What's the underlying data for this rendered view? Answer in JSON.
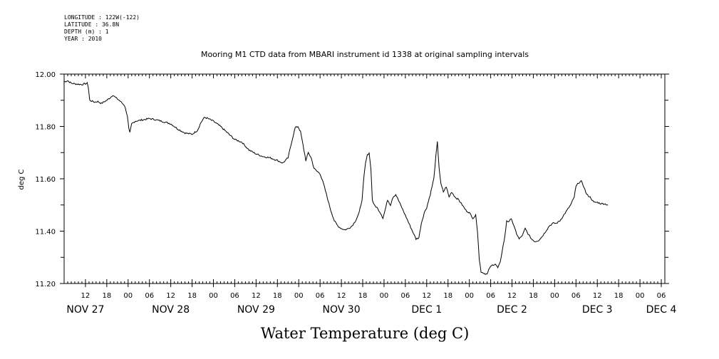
{
  "header": {
    "longitude": "LONGITUDE : 122W(-122)",
    "latitude": "LATITUDE : 36.8N",
    "depth": "DEPTH (m) : 1",
    "year": "YEAR : 2010"
  },
  "chart_data": {
    "type": "line",
    "title": "Mooring M1 CTD data from MBARI instrument id 1338 at original sampling intervals",
    "xlabel": "Water Temperature (deg C)",
    "ylabel": "deg C",
    "x_unit": "hour",
    "xlim": [
      6,
      175
    ],
    "ylim": [
      11.2,
      12.0
    ],
    "yticks": [
      11.2,
      11.4,
      11.6,
      11.8,
      12.0
    ],
    "ytick_labels": [
      "11.20",
      "11.40",
      "11.60",
      "11.80",
      "12.00"
    ],
    "hour_ticks": [
      {
        "x": 12,
        "label": "12"
      },
      {
        "x": 18,
        "label": "18"
      },
      {
        "x": 24,
        "label": "00"
      },
      {
        "x": 30,
        "label": "06"
      },
      {
        "x": 36,
        "label": "12"
      },
      {
        "x": 42,
        "label": "18"
      },
      {
        "x": 48,
        "label": "00"
      },
      {
        "x": 54,
        "label": "06"
      },
      {
        "x": 60,
        "label": "12"
      },
      {
        "x": 66,
        "label": "18"
      },
      {
        "x": 72,
        "label": "00"
      },
      {
        "x": 78,
        "label": "06"
      },
      {
        "x": 84,
        "label": "12"
      },
      {
        "x": 90,
        "label": "18"
      },
      {
        "x": 96,
        "label": "00"
      },
      {
        "x": 102,
        "label": "06"
      },
      {
        "x": 108,
        "label": "12"
      },
      {
        "x": 114,
        "label": "18"
      },
      {
        "x": 120,
        "label": "00"
      },
      {
        "x": 126,
        "label": "06"
      },
      {
        "x": 132,
        "label": "12"
      },
      {
        "x": 138,
        "label": "18"
      },
      {
        "x": 144,
        "label": "00"
      },
      {
        "x": 150,
        "label": "06"
      },
      {
        "x": 156,
        "label": "12"
      },
      {
        "x": 162,
        "label": "18"
      },
      {
        "x": 168,
        "label": "00"
      },
      {
        "x": 174,
        "label": "06"
      }
    ],
    "day_labels": [
      {
        "x": 12,
        "label": "NOV 27"
      },
      {
        "x": 36,
        "label": "NOV 28"
      },
      {
        "x": 60,
        "label": "NOV 29"
      },
      {
        "x": 84,
        "label": "NOV 30"
      },
      {
        "x": 108,
        "label": "DEC  1"
      },
      {
        "x": 132,
        "label": "DEC  2"
      },
      {
        "x": 156,
        "label": "DEC  3"
      },
      {
        "x": 174,
        "label": "DEC  4"
      }
    ],
    "series": [
      {
        "values": [
          [
            6.0,
            11.97
          ],
          [
            7.0,
            11.975
          ],
          [
            8.0,
            11.965
          ],
          [
            9.5,
            11.962
          ],
          [
            11.0,
            11.96
          ],
          [
            12.5,
            11.965
          ],
          [
            12.8,
            11.95
          ],
          [
            13.2,
            11.9
          ],
          [
            14.5,
            11.893
          ],
          [
            15.5,
            11.895
          ],
          [
            16.5,
            11.888
          ],
          [
            18.0,
            11.9
          ],
          [
            19.0,
            11.91
          ],
          [
            19.7,
            11.92
          ],
          [
            20.5,
            11.91
          ],
          [
            21.5,
            11.9
          ],
          [
            23.0,
            11.88
          ],
          [
            23.8,
            11.84
          ],
          [
            24.2,
            11.79
          ],
          [
            24.5,
            11.775
          ],
          [
            25.0,
            11.81
          ],
          [
            26.0,
            11.82
          ],
          [
            28.0,
            11.825
          ],
          [
            30.0,
            11.83
          ],
          [
            32.0,
            11.825
          ],
          [
            34.0,
            11.818
          ],
          [
            36.0,
            11.81
          ],
          [
            38.0,
            11.79
          ],
          [
            40.0,
            11.775
          ],
          [
            42.0,
            11.77
          ],
          [
            43.5,
            11.785
          ],
          [
            44.5,
            11.815
          ],
          [
            45.5,
            11.835
          ],
          [
            46.5,
            11.83
          ],
          [
            48.0,
            11.82
          ],
          [
            50.0,
            11.8
          ],
          [
            52.0,
            11.775
          ],
          [
            54.0,
            11.75
          ],
          [
            56.0,
            11.74
          ],
          [
            58.0,
            11.71
          ],
          [
            60.0,
            11.695
          ],
          [
            62.0,
            11.685
          ],
          [
            64.0,
            11.68
          ],
          [
            66.0,
            11.67
          ],
          [
            67.5,
            11.66
          ],
          [
            69.0,
            11.68
          ],
          [
            70.0,
            11.74
          ],
          [
            71.0,
            11.795
          ],
          [
            71.8,
            11.8
          ],
          [
            72.5,
            11.78
          ],
          [
            73.2,
            11.73
          ],
          [
            74.0,
            11.67
          ],
          [
            74.7,
            11.7
          ],
          [
            75.5,
            11.68
          ],
          [
            76.3,
            11.64
          ],
          [
            77.0,
            11.63
          ],
          [
            78.0,
            11.62
          ],
          [
            79.0,
            11.58
          ],
          [
            80.0,
            11.53
          ],
          [
            81.0,
            11.48
          ],
          [
            82.0,
            11.44
          ],
          [
            83.0,
            11.42
          ],
          [
            84.0,
            11.41
          ],
          [
            85.0,
            11.405
          ],
          [
            86.0,
            11.41
          ],
          [
            87.0,
            11.42
          ],
          [
            88.0,
            11.44
          ],
          [
            89.0,
            11.47
          ],
          [
            89.8,
            11.52
          ],
          [
            90.3,
            11.6
          ],
          [
            90.8,
            11.66
          ],
          [
            91.3,
            11.69
          ],
          [
            91.8,
            11.7
          ],
          [
            92.3,
            11.64
          ],
          [
            92.7,
            11.52
          ],
          [
            93.2,
            11.5
          ],
          [
            94.0,
            11.49
          ],
          [
            95.0,
            11.47
          ],
          [
            95.7,
            11.45
          ],
          [
            96.3,
            11.48
          ],
          [
            97.0,
            11.52
          ],
          [
            97.8,
            11.5
          ],
          [
            98.5,
            11.53
          ],
          [
            99.3,
            11.54
          ],
          [
            100.0,
            11.52
          ],
          [
            101.0,
            11.49
          ],
          [
            102.0,
            11.46
          ],
          [
            103.0,
            11.43
          ],
          [
            104.0,
            11.4
          ],
          [
            105.0,
            11.37
          ],
          [
            105.8,
            11.375
          ],
          [
            106.5,
            11.43
          ],
          [
            107.3,
            11.47
          ],
          [
            108.0,
            11.49
          ],
          [
            109.0,
            11.54
          ],
          [
            110.0,
            11.6
          ],
          [
            110.6,
            11.69
          ],
          [
            111.0,
            11.74
          ],
          [
            111.5,
            11.64
          ],
          [
            112.0,
            11.58
          ],
          [
            112.7,
            11.55
          ],
          [
            113.5,
            11.57
          ],
          [
            114.3,
            11.53
          ],
          [
            115.0,
            11.55
          ],
          [
            116.0,
            11.53
          ],
          [
            117.0,
            11.52
          ],
          [
            118.0,
            11.5
          ],
          [
            119.0,
            11.48
          ],
          [
            120.0,
            11.47
          ],
          [
            121.0,
            11.45
          ],
          [
            121.8,
            11.46
          ],
          [
            122.3,
            11.4
          ],
          [
            122.8,
            11.29
          ],
          [
            123.3,
            11.245
          ],
          [
            124.0,
            11.24
          ],
          [
            125.0,
            11.235
          ],
          [
            125.7,
            11.26
          ],
          [
            126.5,
            11.27
          ],
          [
            127.3,
            11.275
          ],
          [
            128.0,
            11.26
          ],
          [
            128.7,
            11.28
          ],
          [
            129.3,
            11.33
          ],
          [
            130.0,
            11.38
          ],
          [
            130.5,
            11.44
          ],
          [
            131.2,
            11.435
          ],
          [
            131.8,
            11.45
          ],
          [
            132.5,
            11.42
          ],
          [
            133.3,
            11.39
          ],
          [
            134.0,
            11.37
          ],
          [
            135.0,
            11.385
          ],
          [
            135.7,
            11.41
          ],
          [
            136.5,
            11.39
          ],
          [
            137.5,
            11.37
          ],
          [
            138.5,
            11.36
          ],
          [
            139.5,
            11.365
          ],
          [
            140.5,
            11.38
          ],
          [
            141.5,
            11.4
          ],
          [
            142.5,
            11.42
          ],
          [
            143.5,
            11.43
          ],
          [
            144.5,
            11.43
          ],
          [
            145.5,
            11.44
          ],
          [
            146.5,
            11.46
          ],
          [
            147.5,
            11.48
          ],
          [
            148.5,
            11.5
          ],
          [
            149.5,
            11.53
          ],
          [
            150.0,
            11.57
          ],
          [
            150.7,
            11.585
          ],
          [
            151.5,
            11.59
          ],
          [
            152.2,
            11.57
          ],
          [
            153.0,
            11.54
          ],
          [
            154.0,
            11.53
          ],
          [
            155.0,
            11.51
          ],
          [
            156.0,
            11.51
          ],
          [
            157.0,
            11.505
          ],
          [
            158.0,
            11.505
          ],
          [
            159.0,
            11.5
          ]
        ]
      }
    ],
    "grid": false,
    "line_color": "#000000"
  }
}
